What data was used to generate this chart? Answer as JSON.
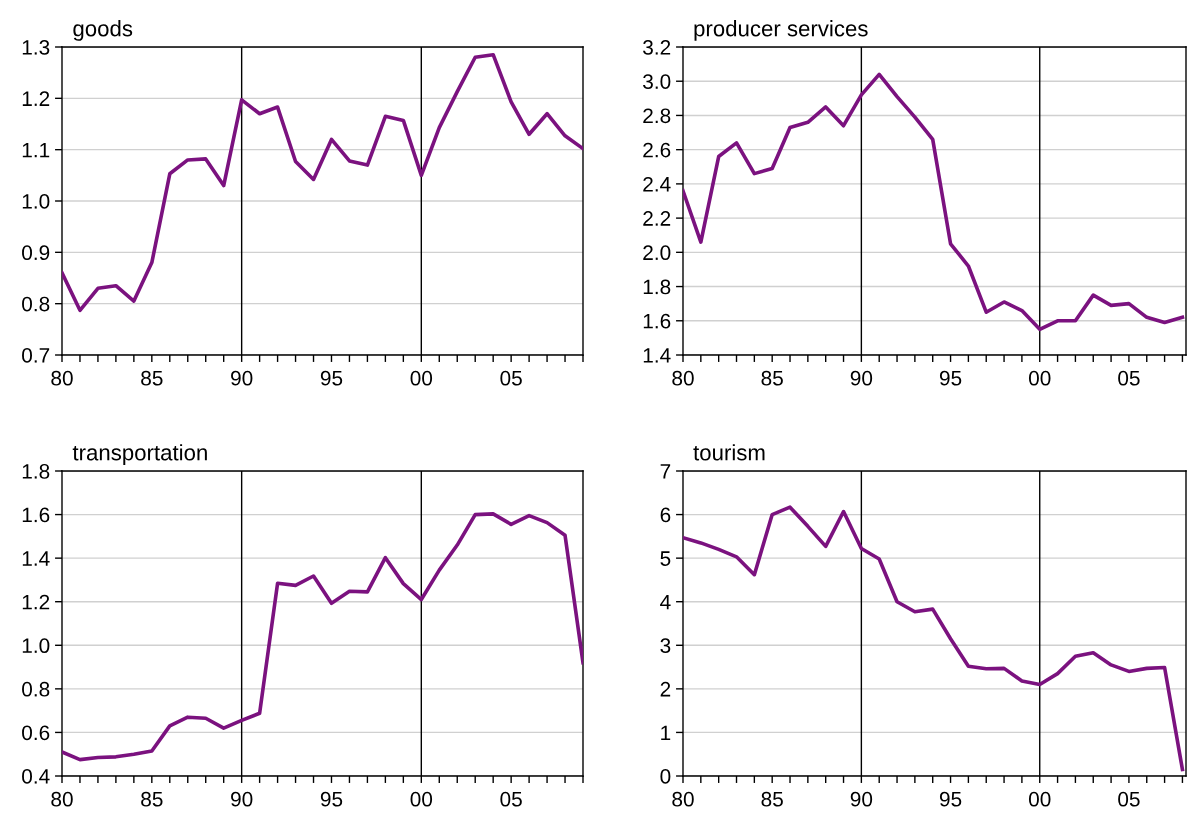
{
  "chart_data": [
    {
      "type": "line",
      "title": "goods",
      "x": [
        1980,
        1981,
        1982,
        1983,
        1984,
        1985,
        1986,
        1987,
        1988,
        1989,
        1990,
        1991,
        1992,
        1993,
        1994,
        1995,
        1996,
        1997,
        1998,
        1999,
        2000,
        2001,
        2002,
        2003,
        2004,
        2005,
        2006,
        2007,
        2008,
        2009
      ],
      "series": [
        {
          "color": "#7b127f",
          "values": [
            0.86,
            0.787,
            0.83,
            0.835,
            0.805,
            0.88,
            1.053,
            1.08,
            1.082,
            1.03,
            1.197,
            1.17,
            1.183,
            1.077,
            1.042,
            1.12,
            1.078,
            1.07,
            1.165,
            1.157,
            1.05,
            1.143,
            1.213,
            1.28,
            1.285,
            1.193,
            1.13,
            1.17,
            1.127,
            1.102
          ]
        }
      ],
      "xlim": [
        1980,
        2009
      ],
      "ylim": [
        0.7,
        1.3
      ],
      "xticks": [
        {
          "value": 1980,
          "label": "80"
        },
        {
          "value": 1981,
          "label": null
        },
        {
          "value": 1982,
          "label": null
        },
        {
          "value": 1983,
          "label": null
        },
        {
          "value": 1984,
          "label": null
        },
        {
          "value": 1985,
          "label": "85"
        },
        {
          "value": 1986,
          "label": null
        },
        {
          "value": 1987,
          "label": null
        },
        {
          "value": 1988,
          "label": null
        },
        {
          "value": 1989,
          "label": null
        },
        {
          "value": 1990,
          "label": "90"
        },
        {
          "value": 1991,
          "label": null
        },
        {
          "value": 1992,
          "label": null
        },
        {
          "value": 1993,
          "label": null
        },
        {
          "value": 1994,
          "label": null
        },
        {
          "value": 1995,
          "label": "95"
        },
        {
          "value": 1996,
          "label": null
        },
        {
          "value": 1997,
          "label": null
        },
        {
          "value": 1998,
          "label": null
        },
        {
          "value": 1999,
          "label": null
        },
        {
          "value": 2000,
          "label": "00"
        },
        {
          "value": 2001,
          "label": null
        },
        {
          "value": 2002,
          "label": null
        },
        {
          "value": 2003,
          "label": null
        },
        {
          "value": 2004,
          "label": null
        },
        {
          "value": 2005,
          "label": "05"
        },
        {
          "value": 2006,
          "label": null
        },
        {
          "value": 2007,
          "label": null
        },
        {
          "value": 2008,
          "label": null
        },
        {
          "value": 2009,
          "label": null
        }
      ],
      "yticks": [
        {
          "value": 0.7,
          "label": "0.7"
        },
        {
          "value": 0.8,
          "label": "0.8"
        },
        {
          "value": 0.9,
          "label": "0.9"
        },
        {
          "value": 1.0,
          "label": "1.0"
        },
        {
          "value": 1.1,
          "label": "1.1"
        },
        {
          "value": 1.2,
          "label": "1.2"
        },
        {
          "value": 1.3,
          "label": "1.3"
        }
      ],
      "grid": "y",
      "ref_lines": [
        {
          "axis": "x",
          "value": 1990,
          "color": "#000000"
        },
        {
          "axis": "x",
          "value": 2000,
          "color": "#000000"
        }
      ]
    },
    {
      "type": "line",
      "title": "producer services",
      "x": [
        1980,
        1981,
        1982,
        1983,
        1984,
        1985,
        1986,
        1987,
        1988,
        1989,
        1990,
        1991,
        1992,
        1993,
        1994,
        1995,
        1996,
        1997,
        1998,
        1999,
        2000,
        2001,
        2002,
        2003,
        2004,
        2005,
        2006,
        2007,
        2008
      ],
      "series": [
        {
          "color": "#7b127f",
          "values": [
            2.36,
            2.06,
            2.56,
            2.64,
            2.46,
            2.49,
            2.73,
            2.76,
            2.85,
            2.74,
            2.92,
            3.04,
            2.91,
            2.79,
            2.66,
            2.05,
            1.92,
            1.65,
            1.71,
            1.66,
            1.55,
            1.6,
            1.6,
            1.75,
            1.69,
            1.7,
            1.62,
            1.59,
            1.62
          ]
        }
      ],
      "xlim": [
        1980,
        2008.2
      ],
      "ylim": [
        1.4,
        3.2
      ],
      "xticks": [
        {
          "value": 1980,
          "label": "80"
        },
        {
          "value": 1981,
          "label": null
        },
        {
          "value": 1982,
          "label": null
        },
        {
          "value": 1983,
          "label": null
        },
        {
          "value": 1984,
          "label": null
        },
        {
          "value": 1985,
          "label": "85"
        },
        {
          "value": 1986,
          "label": null
        },
        {
          "value": 1987,
          "label": null
        },
        {
          "value": 1988,
          "label": null
        },
        {
          "value": 1989,
          "label": null
        },
        {
          "value": 1990,
          "label": "90"
        },
        {
          "value": 1991,
          "label": null
        },
        {
          "value": 1992,
          "label": null
        },
        {
          "value": 1993,
          "label": null
        },
        {
          "value": 1994,
          "label": null
        },
        {
          "value": 1995,
          "label": "95"
        },
        {
          "value": 1996,
          "label": null
        },
        {
          "value": 1997,
          "label": null
        },
        {
          "value": 1998,
          "label": null
        },
        {
          "value": 1999,
          "label": null
        },
        {
          "value": 2000,
          "label": "00"
        },
        {
          "value": 2001,
          "label": null
        },
        {
          "value": 2002,
          "label": null
        },
        {
          "value": 2003,
          "label": null
        },
        {
          "value": 2004,
          "label": null
        },
        {
          "value": 2005,
          "label": "05"
        },
        {
          "value": 2006,
          "label": null
        },
        {
          "value": 2007,
          "label": null
        },
        {
          "value": 2008,
          "label": null
        }
      ],
      "yticks": [
        {
          "value": 1.4,
          "label": "1.4"
        },
        {
          "value": 1.6,
          "label": "1.6"
        },
        {
          "value": 1.8,
          "label": "1.8"
        },
        {
          "value": 2.0,
          "label": "2.0"
        },
        {
          "value": 2.2,
          "label": "2.2"
        },
        {
          "value": 2.4,
          "label": "2.4"
        },
        {
          "value": 2.6,
          "label": "2.6"
        },
        {
          "value": 2.8,
          "label": "2.8"
        },
        {
          "value": 3.0,
          "label": "3.0"
        },
        {
          "value": 3.2,
          "label": "3.2"
        }
      ],
      "grid": "y",
      "ref_lines": [
        {
          "axis": "x",
          "value": 1990,
          "color": "#000000"
        },
        {
          "axis": "x",
          "value": 2000,
          "color": "#000000"
        }
      ]
    },
    {
      "type": "line",
      "title": "transportation",
      "x": [
        1980,
        1981,
        1982,
        1983,
        1984,
        1985,
        1986,
        1987,
        1988,
        1989,
        1990,
        1991,
        1992,
        1993,
        1994,
        1995,
        1996,
        1997,
        1998,
        1999,
        2000,
        2001,
        2002,
        2003,
        2004,
        2005,
        2006,
        2007,
        2008,
        2009
      ],
      "series": [
        {
          "color": "#7b127f",
          "values": [
            0.51,
            0.475,
            0.485,
            0.488,
            0.5,
            0.515,
            0.63,
            0.67,
            0.665,
            0.62,
            0.655,
            0.688,
            1.285,
            1.275,
            1.318,
            1.193,
            1.248,
            1.245,
            1.402,
            1.283,
            1.21,
            1.345,
            1.46,
            1.6,
            1.603,
            1.555,
            1.595,
            1.563,
            1.505,
            0.92
          ]
        }
      ],
      "xlim": [
        1980,
        2009
      ],
      "ylim": [
        0.4,
        1.8
      ],
      "xticks": [
        {
          "value": 1980,
          "label": "80"
        },
        {
          "value": 1981,
          "label": null
        },
        {
          "value": 1982,
          "label": null
        },
        {
          "value": 1983,
          "label": null
        },
        {
          "value": 1984,
          "label": null
        },
        {
          "value": 1985,
          "label": "85"
        },
        {
          "value": 1986,
          "label": null
        },
        {
          "value": 1987,
          "label": null
        },
        {
          "value": 1988,
          "label": null
        },
        {
          "value": 1989,
          "label": null
        },
        {
          "value": 1990,
          "label": "90"
        },
        {
          "value": 1991,
          "label": null
        },
        {
          "value": 1992,
          "label": null
        },
        {
          "value": 1993,
          "label": null
        },
        {
          "value": 1994,
          "label": null
        },
        {
          "value": 1995,
          "label": "95"
        },
        {
          "value": 1996,
          "label": null
        },
        {
          "value": 1997,
          "label": null
        },
        {
          "value": 1998,
          "label": null
        },
        {
          "value": 1999,
          "label": null
        },
        {
          "value": 2000,
          "label": "00"
        },
        {
          "value": 2001,
          "label": null
        },
        {
          "value": 2002,
          "label": null
        },
        {
          "value": 2003,
          "label": null
        },
        {
          "value": 2004,
          "label": null
        },
        {
          "value": 2005,
          "label": "05"
        },
        {
          "value": 2006,
          "label": null
        },
        {
          "value": 2007,
          "label": null
        },
        {
          "value": 2008,
          "label": null
        },
        {
          "value": 2009,
          "label": null
        }
      ],
      "yticks": [
        {
          "value": 0.4,
          "label": "0.4"
        },
        {
          "value": 0.6,
          "label": "0.6"
        },
        {
          "value": 0.8,
          "label": "0.8"
        },
        {
          "value": 1.0,
          "label": "1.0"
        },
        {
          "value": 1.2,
          "label": "1.2"
        },
        {
          "value": 1.4,
          "label": "1.4"
        },
        {
          "value": 1.6,
          "label": "1.6"
        },
        {
          "value": 1.8,
          "label": "1.8"
        }
      ],
      "grid": "y",
      "ref_lines": [
        {
          "axis": "x",
          "value": 1990,
          "color": "#000000"
        },
        {
          "axis": "x",
          "value": 2000,
          "color": "#000000"
        }
      ]
    },
    {
      "type": "line",
      "title": "tourism",
      "x": [
        1980,
        1981,
        1982,
        1983,
        1984,
        1985,
        1986,
        1987,
        1988,
        1989,
        1990,
        1991,
        1992,
        1993,
        1994,
        1995,
        1996,
        1997,
        1998,
        1999,
        2000,
        2001,
        2002,
        2003,
        2004,
        2005,
        2006,
        2007,
        2008
      ],
      "series": [
        {
          "color": "#7b127f",
          "values": [
            5.47,
            5.35,
            5.2,
            5.03,
            4.62,
            6.0,
            6.17,
            5.73,
            5.27,
            6.07,
            5.22,
            4.98,
            4.0,
            3.77,
            3.83,
            3.15,
            2.52,
            2.46,
            2.47,
            2.18,
            2.1,
            2.35,
            2.75,
            2.83,
            2.55,
            2.4,
            2.47,
            2.49,
            0.15
          ]
        }
      ],
      "xlim": [
        1980,
        2008.2
      ],
      "ylim": [
        0,
        7
      ],
      "xticks": [
        {
          "value": 1980,
          "label": "80"
        },
        {
          "value": 1981,
          "label": null
        },
        {
          "value": 1982,
          "label": null
        },
        {
          "value": 1983,
          "label": null
        },
        {
          "value": 1984,
          "label": null
        },
        {
          "value": 1985,
          "label": "85"
        },
        {
          "value": 1986,
          "label": null
        },
        {
          "value": 1987,
          "label": null
        },
        {
          "value": 1988,
          "label": null
        },
        {
          "value": 1989,
          "label": null
        },
        {
          "value": 1990,
          "label": "90"
        },
        {
          "value": 1991,
          "label": null
        },
        {
          "value": 1992,
          "label": null
        },
        {
          "value": 1993,
          "label": null
        },
        {
          "value": 1994,
          "label": null
        },
        {
          "value": 1995,
          "label": "95"
        },
        {
          "value": 1996,
          "label": null
        },
        {
          "value": 1997,
          "label": null
        },
        {
          "value": 1998,
          "label": null
        },
        {
          "value": 1999,
          "label": null
        },
        {
          "value": 2000,
          "label": "00"
        },
        {
          "value": 2001,
          "label": null
        },
        {
          "value": 2002,
          "label": null
        },
        {
          "value": 2003,
          "label": null
        },
        {
          "value": 2004,
          "label": null
        },
        {
          "value": 2005,
          "label": "05"
        },
        {
          "value": 2006,
          "label": null
        },
        {
          "value": 2007,
          "label": null
        },
        {
          "value": 2008,
          "label": null
        }
      ],
      "yticks": [
        0,
        1,
        2,
        3,
        4,
        5,
        6,
        7
      ],
      "grid": "y",
      "ref_lines": [
        {
          "axis": "x",
          "value": 1990,
          "color": "#000000"
        },
        {
          "axis": "x",
          "value": 2000,
          "color": "#000000"
        }
      ]
    }
  ]
}
